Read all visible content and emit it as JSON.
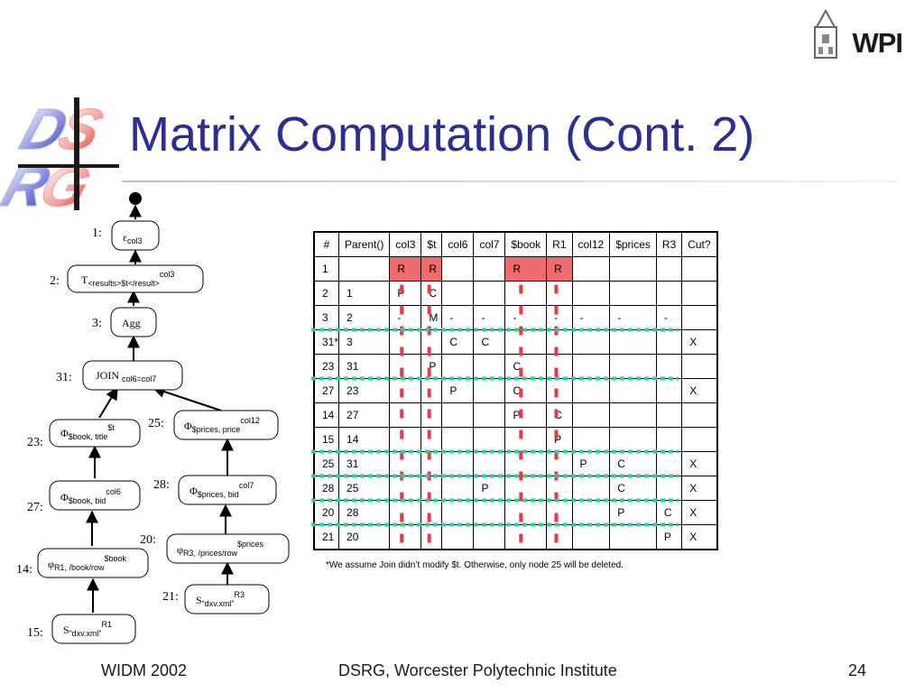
{
  "slide": {
    "title": "Matrix Computation (Cont. 2)",
    "logo_text": "WPI",
    "footnote": "*We assume Join didn’t modify $t. Otherwise, only node 25 will be deleted.",
    "footer_left": "WIDM 2002",
    "footer_center": "DSRG, Worcester Polytechnic Institute",
    "page_number": "24"
  },
  "tree": {
    "nodes": [
      {
        "id": "1:",
        "main": "ε",
        "sub": "col3",
        "sup": ""
      },
      {
        "id": "2:",
        "main": "T",
        "sub": "<results>$t</result>",
        "sup": "col3"
      },
      {
        "id": "3:",
        "main": "Agg",
        "sub": "",
        "sup": ""
      },
      {
        "id": "31:",
        "main": "JOIN ",
        "sub": "col6=col7",
        "sup": ""
      },
      {
        "id": "23:",
        "main": "Φ",
        "sub": "$book, title",
        "sup": "$t"
      },
      {
        "id": "25:",
        "main": "Φ",
        "sub": "$prices, price",
        "sup": "col12"
      },
      {
        "id": "27:",
        "main": "Φ",
        "sub": "$book, bid",
        "sup": "col6"
      },
      {
        "id": "28:",
        "main": "Φ",
        "sub": "$prices, bid",
        "sup": "col7"
      },
      {
        "id": "14:",
        "main": "φ",
        "sub": "R1, /book/row",
        "sup": "$book"
      },
      {
        "id": "20:",
        "main": "φ",
        "sub": "R3, /prices/row",
        "sup": "$prices"
      },
      {
        "id": "15:",
        "main": "S",
        "sub": "“dxv.xml”",
        "sup": "R1"
      },
      {
        "id": "21:",
        "main": "S",
        "sub": "“dxv.xml”",
        "sup": "R3"
      }
    ]
  },
  "matrix": {
    "headers": [
      "#",
      "Parent()",
      "col3",
      "$t",
      "col6",
      "col7",
      "$book",
      "R1",
      "col12",
      "$prices",
      "R3",
      "Cut?"
    ],
    "rows": [
      [
        "1",
        "",
        "R",
        "R",
        "",
        "",
        "R",
        "R",
        "",
        "",
        "",
        ""
      ],
      [
        "2",
        "1",
        "P",
        "C",
        "",
        "",
        "",
        "",
        "",
        "",
        "",
        ""
      ],
      [
        "3",
        "2",
        "-",
        "M",
        "-",
        "-",
        "-",
        "-",
        "-",
        "-",
        "-",
        ""
      ],
      [
        "31*",
        "3",
        "",
        "",
        "C",
        "C",
        "",
        "",
        "",
        "",
        "",
        "X"
      ],
      [
        "23",
        "31",
        "",
        "P",
        "",
        "",
        "C",
        "",
        "",
        "",
        "",
        ""
      ],
      [
        "27",
        "23",
        "",
        "",
        "P",
        "",
        "C",
        "",
        "",
        "",
        "",
        "X"
      ],
      [
        "14",
        "27",
        "",
        "",
        "",
        "",
        "P",
        "C",
        "",
        "",
        "",
        ""
      ],
      [
        "15",
        "14",
        "",
        "",
        "",
        "",
        "",
        "P",
        "",
        "",
        "",
        ""
      ],
      [
        "25",
        "31",
        "",
        "",
        "",
        "",
        "",
        "",
        "P",
        "C",
        "",
        "X"
      ],
      [
        "28",
        "25",
        "",
        "",
        "",
        "P",
        "",
        "",
        "",
        "C",
        "",
        "X"
      ],
      [
        "20",
        "28",
        "",
        "",
        "",
        "",
        "",
        "",
        "",
        "P",
        "C",
        "X"
      ],
      [
        "21",
        "20",
        "",
        "",
        "",
        "",
        "",
        "",
        "",
        "",
        "P",
        "X"
      ]
    ],
    "highlight_color": "#f06b6b",
    "dash_vertical_color": "#e8394a",
    "dash_horizontal_color": "#22d49a"
  }
}
